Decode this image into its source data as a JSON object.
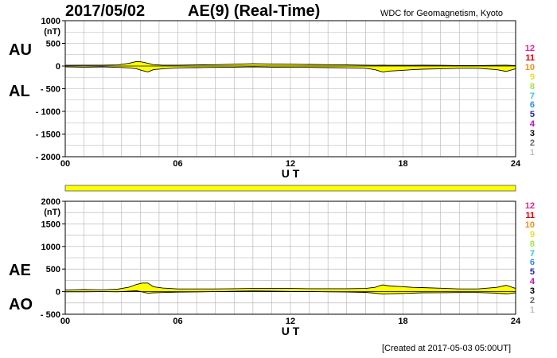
{
  "header": {
    "date": "2017/05/02",
    "index": "AE(9)  (Real-Time)",
    "institution": "WDC for Geomagnetism, Kyoto"
  },
  "footer": {
    "created": "[Created at 2017-05-03 05:00UT]"
  },
  "panel_labels": {
    "au": "AU",
    "al": "AL",
    "ae": "AE",
    "ao": "AO"
  },
  "legend": {
    "numbers": [
      "12",
      "11",
      "10",
      "9",
      "8",
      "7",
      "6",
      "5",
      "4",
      "3",
      "2",
      "1"
    ],
    "colors": [
      "#ff1493",
      "#dd0000",
      "#ff8c00",
      "#e8e800",
      "#99ee33",
      "#33cccc",
      "#1e90ff",
      "#2222bb",
      "#cc00cc",
      "#000000",
      "#666666",
      "#c0c0c0"
    ]
  },
  "colors": {
    "fill": "#ffff00",
    "line": "#000000",
    "grid": "#b0b0b0"
  },
  "chart_data": [
    {
      "type": "area",
      "name": "AU / AL",
      "xlabel": "U T",
      "ylabel": "(nT)",
      "xlim": [
        0,
        24
      ],
      "ylim": [
        -2000,
        1000
      ],
      "x_ticks": [
        "00",
        "06",
        "12",
        "18",
        "24"
      ],
      "y_ticks": [
        "1000",
        "500",
        "0",
        "- 500",
        "- 1000",
        "- 1500",
        "- 2000"
      ],
      "x": [
        0,
        1,
        2,
        2.8,
        3.4,
        3.8,
        4.1,
        4.4,
        4.7,
        5.2,
        6,
        7,
        8,
        9,
        10,
        11,
        12,
        13,
        14,
        15,
        16,
        16.5,
        16.9,
        17.3,
        17.8,
        18.5,
        19,
        20,
        21,
        22,
        23,
        23.5,
        24
      ],
      "series": [
        {
          "name": "AU",
          "values": [
            15,
            20,
            20,
            25,
            60,
            100,
            90,
            60,
            30,
            20,
            20,
            25,
            30,
            40,
            50,
            45,
            40,
            35,
            30,
            25,
            20,
            15,
            20,
            15,
            15,
            15,
            20,
            15,
            10,
            10,
            15,
            20,
            10
          ]
        },
        {
          "name": "AL",
          "values": [
            -20,
            -25,
            -20,
            -30,
            -40,
            -60,
            -100,
            -130,
            -80,
            -60,
            -40,
            -35,
            -30,
            -25,
            -20,
            -25,
            -30,
            -30,
            -35,
            -40,
            -50,
            -80,
            -130,
            -110,
            -100,
            -80,
            -70,
            -60,
            -50,
            -50,
            -80,
            -120,
            -60
          ]
        }
      ]
    },
    {
      "type": "bar",
      "name": "data availability",
      "xlim": [
        0,
        24
      ],
      "values": [
        1
      ]
    },
    {
      "type": "area",
      "name": "AE / AO",
      "xlabel": "U T",
      "ylabel": "(nT)",
      "xlim": [
        0,
        24
      ],
      "ylim": [
        -500,
        2000
      ],
      "x_ticks": [
        "00",
        "06",
        "12",
        "18",
        "24"
      ],
      "y_ticks": [
        "2000",
        "1500",
        "1000",
        "500",
        "0",
        "- 500"
      ],
      "x": [
        0,
        1,
        2,
        2.8,
        3.4,
        3.8,
        4.1,
        4.4,
        4.7,
        5.2,
        6,
        7,
        8,
        9,
        10,
        11,
        12,
        13,
        14,
        15,
        16,
        16.5,
        16.9,
        17.3,
        17.8,
        18.5,
        19,
        20,
        21,
        22,
        23,
        23.5,
        24
      ],
      "series": [
        {
          "name": "AE",
          "values": [
            35,
            45,
            40,
            55,
            100,
            160,
            190,
            190,
            110,
            80,
            60,
            60,
            60,
            65,
            70,
            70,
            70,
            65,
            65,
            65,
            70,
            95,
            150,
            125,
            115,
            95,
            90,
            75,
            60,
            60,
            95,
            140,
            70
          ]
        },
        {
          "name": "AO",
          "values": [
            -3,
            -3,
            0,
            -3,
            10,
            20,
            -5,
            -35,
            -25,
            -20,
            -10,
            -5,
            0,
            8,
            15,
            10,
            5,
            3,
            -3,
            -8,
            -15,
            -33,
            -55,
            -48,
            -43,
            -33,
            -25,
            -23,
            -20,
            -20,
            -33,
            -50,
            -25
          ]
        }
      ]
    }
  ]
}
